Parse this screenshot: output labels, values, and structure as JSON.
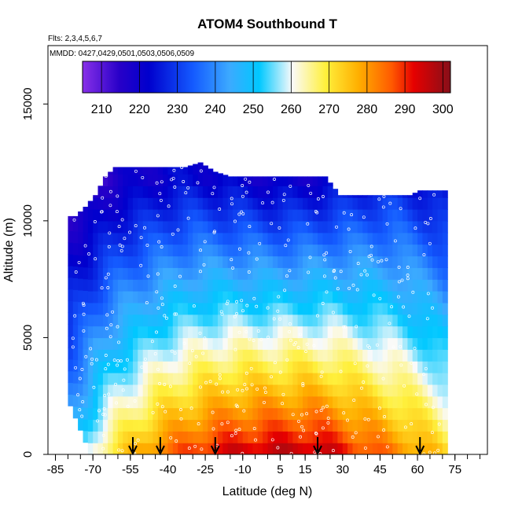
{
  "chart_data": {
    "type": "heatmap",
    "title": "ATOM4 Southbound T",
    "flights_note": "Flts: 2,3,4,5,6,7",
    "dates_note": "MMDD: 0427,0429,0501,0503,0506,0509",
    "xlabel": "Latitude (deg N)",
    "ylabel": "Altitude (m)",
    "xlim": [
      -88,
      88
    ],
    "ylim": [
      0,
      17500
    ],
    "x_ticks": [
      -85,
      -70,
      -55,
      -40,
      -25,
      -10,
      5,
      15,
      30,
      45,
      60,
      75
    ],
    "y_ticks": [
      0,
      5000,
      10000,
      15000
    ],
    "colorbar": {
      "min": 205,
      "max": 302,
      "ticks": [
        210,
        220,
        230,
        240,
        250,
        260,
        270,
        280,
        290,
        300
      ]
    },
    "arrow_latitudes": [
      -54,
      -43,
      -21,
      20,
      61
    ],
    "column_tops_m": [
      [
        -78,
        10200
      ],
      [
        -74,
        10600
      ],
      [
        -70,
        11100
      ],
      [
        -66,
        11900
      ],
      [
        -62,
        12300
      ],
      [
        -58,
        12300
      ],
      [
        -52,
        12300
      ],
      [
        -46,
        12300
      ],
      [
        -40,
        12300
      ],
      [
        -34,
        12300
      ],
      [
        -28,
        12500
      ],
      [
        -22,
        12100
      ],
      [
        -16,
        11900
      ],
      [
        -10,
        11900
      ],
      [
        -2,
        11900
      ],
      [
        6,
        11900
      ],
      [
        14,
        11900
      ],
      [
        22,
        11900
      ],
      [
        28,
        11100
      ],
      [
        36,
        11100
      ],
      [
        44,
        11100
      ],
      [
        50,
        11100
      ],
      [
        56,
        11100
      ],
      [
        60,
        11300
      ],
      [
        66,
        11300
      ],
      [
        70,
        11300
      ]
    ],
    "temperature_profile": {
      "surface_T_by_latitude": [
        [
          -80,
          248
        ],
        [
          -75,
          254
        ],
        [
          -70,
          262
        ],
        [
          -65,
          268
        ],
        [
          -60,
          272
        ],
        [
          -55,
          275
        ],
        [
          -45,
          282
        ],
        [
          -35,
          286
        ],
        [
          -25,
          290
        ],
        [
          -15,
          293
        ],
        [
          -5,
          294
        ],
        [
          5,
          295
        ],
        [
          15,
          295
        ],
        [
          25,
          293
        ],
        [
          35,
          288
        ],
        [
          45,
          284
        ],
        [
          55,
          280
        ],
        [
          65,
          275
        ],
        [
          72,
          270
        ]
      ],
      "tropopause_T_by_latitude": [
        [
          -80,
          212
        ],
        [
          -70,
          214
        ],
        [
          -60,
          218
        ],
        [
          -50,
          220
        ],
        [
          -40,
          222
        ],
        [
          -30,
          223
        ],
        [
          -20,
          222
        ],
        [
          -10,
          221
        ],
        [
          0,
          220
        ],
        [
          10,
          220
        ],
        [
          20,
          221
        ],
        [
          30,
          223
        ],
        [
          40,
          225
        ],
        [
          50,
          226
        ],
        [
          60,
          224
        ],
        [
          70,
          222
        ]
      ]
    }
  }
}
